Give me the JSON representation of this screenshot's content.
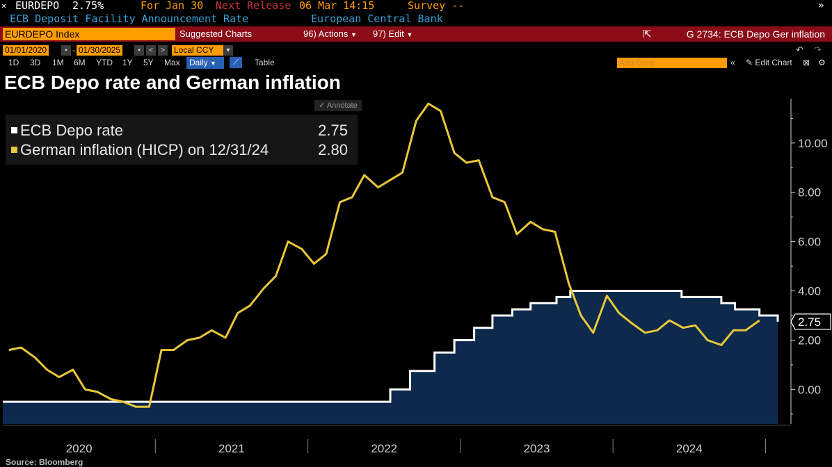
{
  "ticker": {
    "symbol": "EURDEPO",
    "value": "2.75%",
    "for_label": "For Jan 30",
    "next_release_label": "Next Release",
    "next_release_value": "06 Mar 14:15",
    "survey_label": "Survey --",
    "description": "ECB Deposit Facility Announcement Rate",
    "source_org": "European Central Bank"
  },
  "toolbar": {
    "security": "EURDEPO Index",
    "suggested": "Suggested Charts",
    "actions": "96) Actions",
    "edit": "97) Edit",
    "chart_code": "G 2734: ECB Depo Ger inflation"
  },
  "dates": {
    "start": "01/01/2020",
    "end": "01/30/2025",
    "currency": "Local CCY"
  },
  "periods": [
    "1D",
    "3D",
    "1M",
    "6M",
    "YTD",
    "1Y",
    "5Y",
    "Max"
  ],
  "frequency": "Daily",
  "table_label": "Table",
  "add_data_placeholder": "Add Data",
  "edit_chart_label": "Edit Chart",
  "annotate_label": "Annotate",
  "source": "Source: Bloomberg",
  "colors": {
    "depo": "#ffffff",
    "inflation": "#e8c838",
    "fill": "#0d2a4c",
    "axis": "#d0d0d0"
  },
  "chart_data": {
    "type": "line",
    "title": "ECB Depo rate and German inflation",
    "legend": [
      {
        "name": "ECB Depo rate",
        "value": "2.75"
      },
      {
        "name": "German inflation (HICP) on 12/31/24",
        "value": "2.80"
      }
    ],
    "last_price_tag": "2.75",
    "ylim": [
      -1.4,
      11.8
    ],
    "xlim": [
      2020.0,
      2025.08
    ],
    "yticks": [
      0.0,
      2.0,
      4.0,
      6.0,
      8.0,
      10.0
    ],
    "ytick_labels": [
      "0.00",
      "2.00",
      "4.00",
      "6.00",
      "8.00",
      "10.00"
    ],
    "xlabels": [
      {
        "label": "2020",
        "at": 2020.5
      },
      {
        "label": "2021",
        "at": 2021.5
      },
      {
        "label": "2022",
        "at": 2022.5
      },
      {
        "label": "2023",
        "at": 2023.5
      },
      {
        "label": "2024",
        "at": 2024.5
      }
    ],
    "year_boundaries": [
      2021,
      2022,
      2023,
      2024,
      2025
    ],
    "series": [
      {
        "name": "ECB Depo rate",
        "step": true,
        "filled": true,
        "x": [
          2020.0,
          2022.54,
          2022.67,
          2022.83,
          2022.96,
          2023.09,
          2023.21,
          2023.34,
          2023.46,
          2023.63,
          2023.72,
          2024.45,
          2024.71,
          2024.8,
          2024.96,
          2025.08
        ],
        "y": [
          -0.5,
          0.0,
          0.75,
          1.5,
          2.0,
          2.5,
          3.0,
          3.25,
          3.5,
          3.75,
          4.0,
          3.75,
          3.5,
          3.25,
          3.0,
          2.75
        ]
      },
      {
        "name": "German inflation (HICP)",
        "x": [
          2020.04,
          2020.12,
          2020.21,
          2020.29,
          2020.37,
          2020.46,
          2020.54,
          2020.62,
          2020.71,
          2020.79,
          2020.87,
          2020.96,
          2021.04,
          2021.12,
          2021.21,
          2021.29,
          2021.37,
          2021.46,
          2021.54,
          2021.62,
          2021.71,
          2021.79,
          2021.87,
          2021.96,
          2022.04,
          2022.12,
          2022.21,
          2022.29,
          2022.37,
          2022.46,
          2022.54,
          2022.62,
          2022.71,
          2022.79,
          2022.87,
          2022.96,
          2023.04,
          2023.12,
          2023.21,
          2023.29,
          2023.37,
          2023.46,
          2023.54,
          2023.62,
          2023.71,
          2023.79,
          2023.87,
          2023.96,
          2024.04,
          2024.12,
          2024.21,
          2024.29,
          2024.37,
          2024.46,
          2024.54,
          2024.62,
          2024.71,
          2024.79,
          2024.87,
          2024.96
        ],
        "y": [
          1.6,
          1.7,
          1.3,
          0.8,
          0.5,
          0.8,
          0.0,
          -0.1,
          -0.4,
          -0.5,
          -0.7,
          -0.7,
          1.6,
          1.6,
          2.0,
          2.1,
          2.4,
          2.1,
          3.1,
          3.4,
          4.1,
          4.6,
          6.0,
          5.7,
          5.1,
          5.5,
          7.6,
          7.8,
          8.7,
          8.2,
          8.5,
          8.8,
          10.9,
          11.6,
          11.3,
          9.6,
          9.2,
          9.3,
          7.8,
          7.6,
          6.3,
          6.8,
          6.5,
          6.4,
          4.3,
          3.0,
          2.3,
          3.8,
          3.1,
          2.7,
          2.3,
          2.4,
          2.8,
          2.5,
          2.6,
          2.0,
          1.8,
          2.4,
          2.4,
          2.8
        ]
      }
    ]
  }
}
